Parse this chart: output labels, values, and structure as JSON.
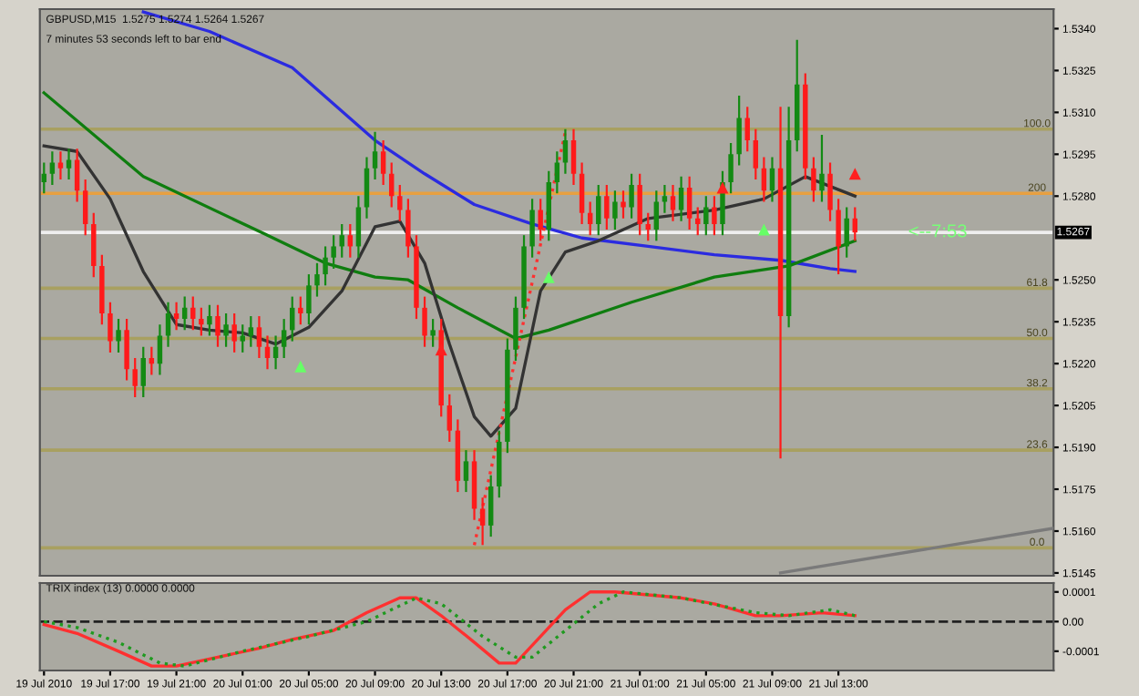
{
  "chart_data": [
    {
      "type": "candlestick",
      "title": "GBPUSD,M15  1.5275 1.5274 1.5264 1.5267",
      "annotations": [
        "7 minutes 53 seconds left to bar end",
        {
          "text": "<--7:53",
          "x": "2010-07-21T19:00",
          "y": 1.5267
        },
        {
          "text": "100.0",
          "x": "2010-07-22T01:00",
          "y": 1.5304
        },
        {
          "text": "200",
          "x": "2010-07-22T01:00",
          "y": 1.5281
        },
        {
          "text": "61.8",
          "x": "2010-07-22T01:00",
          "y": 1.5247
        },
        {
          "text": "50.0",
          "x": "2010-07-22T01:00",
          "y": 1.5229
        },
        {
          "text": "38.2",
          "x": "2010-07-22T01:00",
          "y": 1.5211
        },
        {
          "text": "23.6",
          "x": "2010-07-22T01:00",
          "y": 1.5189
        },
        {
          "text": "0.0",
          "x": "2010-07-22T01:00",
          "y": 1.5154
        }
      ],
      "x": [
        "2010-07-19T13:00",
        "2010-07-19T13:30",
        "2010-07-19T14:00",
        "2010-07-19T14:30",
        "2010-07-19T15:00",
        "2010-07-19T15:30",
        "2010-07-19T16:00",
        "2010-07-19T16:30",
        "2010-07-19T17:00",
        "2010-07-19T17:30",
        "2010-07-19T18:00",
        "2010-07-19T18:30",
        "2010-07-19T19:00",
        "2010-07-19T19:30",
        "2010-07-19T20:00",
        "2010-07-19T20:30",
        "2010-07-19T21:00",
        "2010-07-19T21:30",
        "2010-07-19T22:00",
        "2010-07-19T22:30",
        "2010-07-19T23:00",
        "2010-07-19T23:30",
        "2010-07-20T00:00",
        "2010-07-20T00:30",
        "2010-07-20T01:00",
        "2010-07-20T01:30",
        "2010-07-20T02:00",
        "2010-07-20T02:30",
        "2010-07-20T03:00",
        "2010-07-20T03:30",
        "2010-07-20T04:00",
        "2010-07-20T04:30",
        "2010-07-20T05:00",
        "2010-07-20T05:30",
        "2010-07-20T06:00",
        "2010-07-20T06:30",
        "2010-07-20T07:00",
        "2010-07-20T07:30",
        "2010-07-20T08:00",
        "2010-07-20T08:30",
        "2010-07-20T09:00",
        "2010-07-20T09:30",
        "2010-07-20T10:00",
        "2010-07-20T10:30",
        "2010-07-20T11:00",
        "2010-07-20T11:30",
        "2010-07-20T12:00",
        "2010-07-20T12:30",
        "2010-07-20T13:00",
        "2010-07-20T13:30",
        "2010-07-20T14:00",
        "2010-07-20T14:30",
        "2010-07-20T15:00",
        "2010-07-20T15:30",
        "2010-07-20T16:00",
        "2010-07-20T16:30",
        "2010-07-20T17:00",
        "2010-07-20T17:30",
        "2010-07-20T18:00",
        "2010-07-20T18:30",
        "2010-07-20T19:00",
        "2010-07-20T19:30",
        "2010-07-20T20:00",
        "2010-07-20T20:30",
        "2010-07-20T21:00",
        "2010-07-20T21:30",
        "2010-07-20T22:00",
        "2010-07-20T22:30",
        "2010-07-20T23:00",
        "2010-07-20T23:30",
        "2010-07-21T00:00",
        "2010-07-21T00:30",
        "2010-07-21T01:00",
        "2010-07-21T01:30",
        "2010-07-21T02:00",
        "2010-07-21T02:30",
        "2010-07-21T03:00",
        "2010-07-21T03:30",
        "2010-07-21T04:00",
        "2010-07-21T04:30",
        "2010-07-21T05:00",
        "2010-07-21T05:30",
        "2010-07-21T06:00",
        "2010-07-21T06:30",
        "2010-07-21T07:00",
        "2010-07-21T07:30",
        "2010-07-21T08:00",
        "2010-07-21T08:30",
        "2010-07-21T09:00",
        "2010-07-21T09:30",
        "2010-07-21T10:00",
        "2010-07-21T10:30",
        "2010-07-21T11:00",
        "2010-07-21T11:30",
        "2010-07-21T12:00",
        "2010-07-21T12:30",
        "2010-07-21T13:00",
        "2010-07-21T13:30",
        "2010-07-21T14:00"
      ],
      "ohlc": [
        [
          1.5285,
          1.5292,
          1.5281,
          1.5288
        ],
        [
          1.5288,
          1.5296,
          1.5284,
          1.5292
        ],
        [
          1.5292,
          1.5296,
          1.5286,
          1.529
        ],
        [
          1.529,
          1.5297,
          1.5286,
          1.5293
        ],
        [
          1.5293,
          1.5297,
          1.5278,
          1.5282
        ],
        [
          1.5282,
          1.5286,
          1.5266,
          1.527
        ],
        [
          1.527,
          1.5274,
          1.5251,
          1.5255
        ],
        [
          1.5255,
          1.5259,
          1.5234,
          1.5238
        ],
        [
          1.5238,
          1.5242,
          1.5224,
          1.5228
        ],
        [
          1.5228,
          1.5236,
          1.5224,
          1.5232
        ],
        [
          1.5232,
          1.5236,
          1.5214,
          1.5218
        ],
        [
          1.5218,
          1.5222,
          1.5208,
          1.5212
        ],
        [
          1.5212,
          1.5226,
          1.5208,
          1.5222
        ],
        [
          1.5222,
          1.5226,
          1.5216,
          1.522
        ],
        [
          1.522,
          1.5234,
          1.5216,
          1.523
        ],
        [
          1.523,
          1.5242,
          1.5226,
          1.5238
        ],
        [
          1.5238,
          1.5242,
          1.5232,
          1.5236
        ],
        [
          1.5236,
          1.5244,
          1.5232,
          1.524
        ],
        [
          1.524,
          1.5244,
          1.5232,
          1.5236
        ],
        [
          1.5236,
          1.524,
          1.523,
          1.5234
        ],
        [
          1.5234,
          1.5241,
          1.523,
          1.5237
        ],
        [
          1.5237,
          1.5241,
          1.5226,
          1.523
        ],
        [
          1.523,
          1.5238,
          1.5226,
          1.5234
        ],
        [
          1.5234,
          1.5238,
          1.5224,
          1.5228
        ],
        [
          1.5228,
          1.5234,
          1.5224,
          1.523
        ],
        [
          1.523,
          1.5237,
          1.5226,
          1.5233
        ],
        [
          1.5233,
          1.5237,
          1.5222,
          1.5226
        ],
        [
          1.5226,
          1.523,
          1.5218,
          1.5222
        ],
        [
          1.5222,
          1.523,
          1.5218,
          1.5226
        ],
        [
          1.5226,
          1.5236,
          1.5222,
          1.5232
        ],
        [
          1.5232,
          1.5244,
          1.5228,
          1.524
        ],
        [
          1.524,
          1.5244,
          1.5234,
          1.5238
        ],
        [
          1.5238,
          1.5252,
          1.5234,
          1.5248
        ],
        [
          1.5248,
          1.5256,
          1.5244,
          1.5252
        ],
        [
          1.5252,
          1.5262,
          1.5248,
          1.5258
        ],
        [
          1.5258,
          1.5266,
          1.5254,
          1.5262
        ],
        [
          1.5262,
          1.527,
          1.5258,
          1.5266
        ],
        [
          1.5266,
          1.527,
          1.5258,
          1.5262
        ],
        [
          1.5262,
          1.528,
          1.5258,
          1.5276
        ],
        [
          1.5276,
          1.5294,
          1.5272,
          1.529
        ],
        [
          1.529,
          1.5303,
          1.5286,
          1.5296
        ],
        [
          1.5296,
          1.53,
          1.5284,
          1.5288
        ],
        [
          1.5288,
          1.5292,
          1.5276,
          1.528
        ],
        [
          1.528,
          1.5284,
          1.5271,
          1.5275
        ],
        [
          1.5275,
          1.5279,
          1.5258,
          1.5262
        ],
        [
          1.5262,
          1.5266,
          1.5236,
          1.524
        ],
        [
          1.524,
          1.5244,
          1.5226,
          1.523
        ],
        [
          1.523,
          1.5236,
          1.5226,
          1.5232
        ],
        [
          1.5232,
          1.5236,
          1.5201,
          1.5205
        ],
        [
          1.5205,
          1.5209,
          1.5192,
          1.5196
        ],
        [
          1.5196,
          1.52,
          1.5174,
          1.5178
        ],
        [
          1.5178,
          1.5189,
          1.5174,
          1.5185
        ],
        [
          1.5185,
          1.5189,
          1.5164,
          1.5168
        ],
        [
          1.5168,
          1.5172,
          1.5155,
          1.5162
        ],
        [
          1.5162,
          1.518,
          1.5158,
          1.5176
        ],
        [
          1.5176,
          1.5196,
          1.5172,
          1.5192
        ],
        [
          1.5192,
          1.5229,
          1.5188,
          1.5225
        ],
        [
          1.5225,
          1.5244,
          1.5221,
          1.524
        ],
        [
          1.524,
          1.5266,
          1.5236,
          1.5262
        ],
        [
          1.5262,
          1.5279,
          1.5258,
          1.5275
        ],
        [
          1.5275,
          1.5279,
          1.5264,
          1.5268
        ],
        [
          1.5268,
          1.5289,
          1.5264,
          1.5285
        ],
        [
          1.5285,
          1.5296,
          1.5281,
          1.5292
        ],
        [
          1.5292,
          1.5304,
          1.5288,
          1.53
        ],
        [
          1.53,
          1.5304,
          1.5284,
          1.5288
        ],
        [
          1.5288,
          1.5292,
          1.527,
          1.5274
        ],
        [
          1.5274,
          1.5278,
          1.5266,
          1.527
        ],
        [
          1.527,
          1.5284,
          1.5266,
          1.528
        ],
        [
          1.528,
          1.5284,
          1.5268,
          1.5272
        ],
        [
          1.5272,
          1.5282,
          1.5268,
          1.5278
        ],
        [
          1.5278,
          1.5282,
          1.5272,
          1.5276
        ],
        [
          1.5276,
          1.5288,
          1.5272,
          1.5284
        ],
        [
          1.5284,
          1.5288,
          1.5266,
          1.527
        ],
        [
          1.527,
          1.5274,
          1.5264,
          1.5268
        ],
        [
          1.5268,
          1.5282,
          1.5264,
          1.5278
        ],
        [
          1.5278,
          1.5284,
          1.5274,
          1.528
        ],
        [
          1.528,
          1.5284,
          1.5271,
          1.5275
        ],
        [
          1.5275,
          1.5287,
          1.5271,
          1.5283
        ],
        [
          1.5283,
          1.5287,
          1.5268,
          1.5272
        ],
        [
          1.5272,
          1.5276,
          1.5266,
          1.527
        ],
        [
          1.527,
          1.528,
          1.5266,
          1.5276
        ],
        [
          1.5276,
          1.528,
          1.5266,
          1.527
        ],
        [
          1.527,
          1.5289,
          1.5266,
          1.5285
        ],
        [
          1.5285,
          1.5299,
          1.5281,
          1.5295
        ],
        [
          1.5295,
          1.5316,
          1.5291,
          1.5308
        ],
        [
          1.5308,
          1.5312,
          1.5296,
          1.53
        ],
        [
          1.53,
          1.5304,
          1.5286,
          1.529
        ],
        [
          1.529,
          1.5294,
          1.5278,
          1.5282
        ],
        [
          1.5282,
          1.5294,
          1.5278,
          1.529
        ],
        [
          1.529,
          1.5312,
          1.5186,
          1.5237
        ],
        [
          1.5237,
          1.5312,
          1.5233,
          1.53
        ],
        [
          1.53,
          1.5336,
          1.5296,
          1.532
        ],
        [
          1.532,
          1.5324,
          1.5286,
          1.529
        ],
        [
          1.529,
          1.5294,
          1.5278,
          1.5282
        ],
        [
          1.5282,
          1.5302,
          1.5278,
          1.5288
        ],
        [
          1.5288,
          1.5292,
          1.5271,
          1.5275
        ],
        [
          1.5275,
          1.5279,
          1.5252,
          1.5262
        ],
        [
          1.5262,
          1.5276,
          1.5258,
          1.5272
        ],
        [
          1.5272,
          1.5276,
          1.5264,
          1.5267
        ]
      ],
      "colors": [
        "#138a13",
        "#138a13",
        "#ff1a1a",
        "#138a13",
        "#ff1a1a",
        "#ff1a1a",
        "#ff1a1a",
        "#ff1a1a",
        "#ff1a1a",
        "#138a13",
        "#ff1a1a",
        "#ff1a1a",
        "#138a13",
        "#ff1a1a",
        "#138a13",
        "#138a13",
        "#ff1a1a",
        "#138a13",
        "#ff1a1a",
        "#ff1a1a",
        "#138a13",
        "#ff1a1a",
        "#138a13",
        "#ff1a1a",
        "#138a13",
        "#138a13",
        "#ff1a1a",
        "#ff1a1a",
        "#138a13",
        "#138a13",
        "#138a13",
        "#ff1a1a",
        "#138a13",
        "#138a13",
        "#138a13",
        "#138a13",
        "#138a13",
        "#ff1a1a",
        "#138a13",
        "#138a13",
        "#138a13",
        "#ff1a1a",
        "#ff1a1a",
        "#ff1a1a",
        "#ff1a1a",
        "#ff1a1a",
        "#ff1a1a",
        "#138a13",
        "#ff1a1a",
        "#ff1a1a",
        "#ff1a1a",
        "#138a13",
        "#ff1a1a",
        "#ff1a1a",
        "#138a13",
        "#138a13",
        "#138a13",
        "#138a13",
        "#138a13",
        "#138a13",
        "#ff1a1a",
        "#138a13",
        "#138a13",
        "#138a13",
        "#ff1a1a",
        "#ff1a1a",
        "#ff1a1a",
        "#138a13",
        "#ff1a1a",
        "#138a13",
        "#ff1a1a",
        "#138a13",
        "#ff1a1a",
        "#ff1a1a",
        "#138a13",
        "#138a13",
        "#ff1a1a",
        "#138a13",
        "#ff1a1a",
        "#ff1a1a",
        "#138a13",
        "#ff1a1a",
        "#138a13",
        "#138a13",
        "#138a13",
        "#ff1a1a",
        "#ff1a1a",
        "#ff1a1a",
        "#138a13",
        "#ff1a1a",
        "#138a13",
        "#138a13",
        "#ff1a1a",
        "#ff1a1a",
        "#138a13",
        "#ff1a1a",
        "#ff1a1a",
        "#138a13",
        "#ff1a1a"
      ],
      "series": [
        {
          "type": "line",
          "color": "#2b2be0",
          "x": [
            "2010-07-19T19:00",
            "2010-07-19T23:00",
            "2010-07-20T04:00",
            "2010-07-20T09:00",
            "2010-07-20T12:00",
            "2010-07-20T15:00",
            "2010-07-20T18:30",
            "2010-07-20T21:30",
            "2010-07-21T01:30",
            "2010-07-21T05:30",
            "2010-07-21T09:30",
            "2010-07-21T12:30",
            "2010-07-21T14:00"
          ],
          "values": [
            1.5346,
            1.5339,
            1.5326,
            1.53,
            1.5288,
            1.5277,
            1.527,
            1.5265,
            1.5262,
            1.5259,
            1.5257,
            1.5254,
            1.5253
          ]
        },
        {
          "type": "line",
          "color": "#0f7d0f",
          "x": [
            "2010-07-19T13:00",
            "2010-07-19T19:00",
            "2010-07-20T02:30",
            "2010-07-20T06:00",
            "2010-07-20T09:00",
            "2010-07-20T11:00",
            "2010-07-20T14:00",
            "2010-07-20T17:30",
            "2010-07-20T19:30",
            "2010-07-21T00:30",
            "2010-07-21T05:30",
            "2010-07-21T10:00",
            "2010-07-21T14:00"
          ],
          "values": [
            1.5317,
            1.5287,
            1.5266,
            1.5256,
            1.5251,
            1.525,
            1.524,
            1.5229,
            1.5232,
            1.5242,
            1.5251,
            1.5255,
            1.5264
          ]
        },
        {
          "type": "line",
          "color": "#333333",
          "x": [
            "2010-07-19T13:00",
            "2010-07-19T15:00",
            "2010-07-19T17:00",
            "2010-07-19T19:00",
            "2010-07-19T21:00",
            "2010-07-19T23:00",
            "2010-07-20T01:00",
            "2010-07-20T03:00",
            "2010-07-20T05:00",
            "2010-07-20T07:00",
            "2010-07-20T09:00",
            "2010-07-20T10:30",
            "2010-07-20T12:00",
            "2010-07-20T13:30",
            "2010-07-20T15:00",
            "2010-07-20T16:00",
            "2010-07-20T17:30",
            "2010-07-20T19:00",
            "2010-07-20T20:30",
            "2010-07-20T22:30",
            "2010-07-21T01:30",
            "2010-07-21T05:30",
            "2010-07-21T08:30",
            "2010-07-21T11:00",
            "2010-07-21T14:00"
          ],
          "values": [
            1.5298,
            1.5296,
            1.5279,
            1.5253,
            1.5234,
            1.5232,
            1.5231,
            1.5227,
            1.5233,
            1.5246,
            1.5269,
            1.5271,
            1.5256,
            1.5227,
            1.5201,
            1.5194,
            1.5204,
            1.5246,
            1.526,
            1.5264,
            1.5272,
            1.5275,
            1.5279,
            1.5287,
            1.528
          ]
        },
        {
          "type": "line",
          "color": "#ff3030",
          "line_style": "dotted",
          "x": [
            "2010-07-20T15:00",
            "2010-07-20T20:30"
          ],
          "values": [
            1.5155,
            1.5303
          ]
        },
        {
          "type": "line",
          "color": "#7a7a7a",
          "x": [
            "2010-07-21T09:30",
            "2010-07-22T02:00"
          ],
          "values": [
            1.5145,
            1.5161
          ]
        },
        {
          "type": "scatter",
          "marker": "triangle",
          "color": "#66ff66",
          "x": [
            "2010-07-20T04:30",
            "2010-07-20T19:30",
            "2010-07-21T08:30"
          ],
          "values": [
            1.5219,
            1.5251,
            1.5268
          ]
        },
        {
          "type": "scatter",
          "marker": "triangle",
          "color": "#ff2020",
          "x": [
            "2010-07-20T13:00",
            "2010-07-21T06:00",
            "2010-07-21T14:00"
          ],
          "values": [
            1.5225,
            1.5283,
            1.5288
          ]
        }
      ],
      "ref_lines": [
        {
          "axis": "y",
          "value": 1.5304,
          "color": "#a8a060"
        },
        {
          "axis": "y",
          "value": 1.5281,
          "color": "#e8a040"
        },
        {
          "axis": "y",
          "value": 1.5267,
          "label": "1.5267",
          "color": "#eeeeee"
        },
        {
          "axis": "y",
          "value": 1.5247,
          "color": "#a8a060"
        },
        {
          "axis": "y",
          "value": 1.5229,
          "color": "#a8a060"
        },
        {
          "axis": "y",
          "value": 1.5211,
          "color": "#a8a060"
        },
        {
          "axis": "y",
          "value": 1.5189,
          "color": "#a8a060"
        },
        {
          "axis": "y",
          "value": 1.5154,
          "color": "#a8a060"
        }
      ],
      "xlim": [
        "2010-07-19T12:45",
        "2010-07-22T02:00"
      ],
      "ylim": [
        1.5144,
        1.5347
      ],
      "yticks": [
        {
          "value": 1.534,
          "label": "1.5340"
        },
        {
          "value": 1.5325,
          "label": "1.5325"
        },
        {
          "value": 1.531,
          "label": "1.5310"
        },
        {
          "value": 1.5295,
          "label": "1.5295"
        },
        {
          "value": 1.528,
          "label": "1.5280"
        },
        {
          "value": 1.525,
          "label": "1.5250"
        },
        {
          "value": 1.5235,
          "label": "1.5235"
        },
        {
          "value": 1.522,
          "label": "1.5220"
        },
        {
          "value": 1.5205,
          "label": "1.5205"
        },
        {
          "value": 1.519,
          "label": "1.5190"
        },
        {
          "value": 1.5175,
          "label": "1.5175"
        },
        {
          "value": 1.516,
          "label": "1.5160"
        },
        {
          "value": 1.5145,
          "label": "1.5145"
        }
      ],
      "tick_labels": "y"
    },
    {
      "type": "line",
      "title": "TRIX index (13) 0.0000 0.0000",
      "series": [
        {
          "color": "#ff3030",
          "x": [
            "2010-07-19T13:00",
            "2010-07-19T15:00",
            "2010-07-19T17:30",
            "2010-07-19T19:30",
            "2010-07-19T21:00",
            "2010-07-19T23:30",
            "2010-07-20T02:00",
            "2010-07-20T04:00",
            "2010-07-20T06:30",
            "2010-07-20T08:30",
            "2010-07-20T10:30",
            "2010-07-20T11:30",
            "2010-07-20T13:00",
            "2010-07-20T15:00",
            "2010-07-20T16:30",
            "2010-07-20T17:30",
            "2010-07-20T19:00",
            "2010-07-20T20:30",
            "2010-07-20T22:00",
            "2010-07-20T23:30",
            "2010-07-21T01:30",
            "2010-07-21T03:30",
            "2010-07-21T05:30",
            "2010-07-21T08:00",
            "2010-07-21T09:30",
            "2010-07-21T12:00",
            "2010-07-21T14:00"
          ],
          "values": [
            -1e-05,
            -4e-05,
            -0.0001,
            -0.00015,
            -0.00015,
            -0.00012,
            -9e-05,
            -6e-05,
            -3e-05,
            3e-05,
            8e-05,
            8e-05,
            2e-05,
            -7e-05,
            -0.00014,
            -0.00014,
            -5e-05,
            4e-05,
            0.0001,
            0.0001,
            9e-05,
            8e-05,
            6e-05,
            2e-05,
            2e-05,
            3e-05,
            2e-05
          ]
        },
        {
          "color": "#1f9a1f",
          "line_style": "dotted",
          "x": [
            "2010-07-19T13:00",
            "2010-07-19T15:00",
            "2010-07-19T17:30",
            "2010-07-19T20:00",
            "2010-07-19T21:30",
            "2010-07-20T01:00",
            "2010-07-20T05:00",
            "2010-07-20T08:30",
            "2010-07-20T11:30",
            "2010-07-20T13:00",
            "2010-07-20T15:30",
            "2010-07-20T17:30",
            "2010-07-20T18:30",
            "2010-07-20T20:30",
            "2010-07-20T22:30",
            "2010-07-21T00:00",
            "2010-07-21T03:30",
            "2010-07-21T08:00",
            "2010-07-21T10:00",
            "2010-07-21T12:30",
            "2010-07-21T14:00"
          ],
          "values": [
            0.0,
            -2e-05,
            -7e-05,
            -0.00014,
            -0.00015,
            -0.0001,
            -5e-05,
            0.0,
            8e-05,
            6e-05,
            -5e-05,
            -0.00012,
            -0.00012,
            -3e-05,
            6e-05,
            0.0001,
            8e-05,
            3e-05,
            2e-05,
            4e-05,
            2e-05
          ]
        }
      ],
      "ref_lines": [
        {
          "axis": "y",
          "value": 0,
          "color": "#222222",
          "line_style": "dashed"
        }
      ],
      "xlim": [
        "2010-07-19T12:45",
        "2010-07-22T02:00"
      ],
      "xticks": [
        {
          "value": "2010-07-19T13:00",
          "label": "19 Jul 2010"
        },
        {
          "value": "2010-07-19T17:00",
          "label": "19 Jul 17:00"
        },
        {
          "value": "2010-07-19T21:00",
          "label": "19 Jul 21:00"
        },
        {
          "value": "2010-07-20T01:00",
          "label": "20 Jul 01:00"
        },
        {
          "value": "2010-07-20T05:00",
          "label": "20 Jul 05:00"
        },
        {
          "value": "2010-07-20T09:00",
          "label": "20 Jul 09:00"
        },
        {
          "value": "2010-07-20T13:00",
          "label": "20 Jul 13:00"
        },
        {
          "value": "2010-07-20T17:00",
          "label": "20 Jul 17:00"
        },
        {
          "value": "2010-07-20T21:00",
          "label": "20 Jul 21:00"
        },
        {
          "value": "2010-07-21T01:00",
          "label": "21 Jul 01:00"
        },
        {
          "value": "2010-07-21T05:00",
          "label": "21 Jul 05:00"
        },
        {
          "value": "2010-07-21T09:00",
          "label": "21 Jul 09:00"
        },
        {
          "value": "2010-07-21T13:00",
          "label": "21 Jul 13:00"
        }
      ],
      "ylim": [
        -0.000165,
        0.00013
      ],
      "yticks": [
        {
          "value": 0.0001,
          "label": "0.0001"
        },
        {
          "value": 0,
          "label": "0.00"
        },
        {
          "value": -0.0001,
          "label": "-0.0001"
        }
      ]
    }
  ]
}
